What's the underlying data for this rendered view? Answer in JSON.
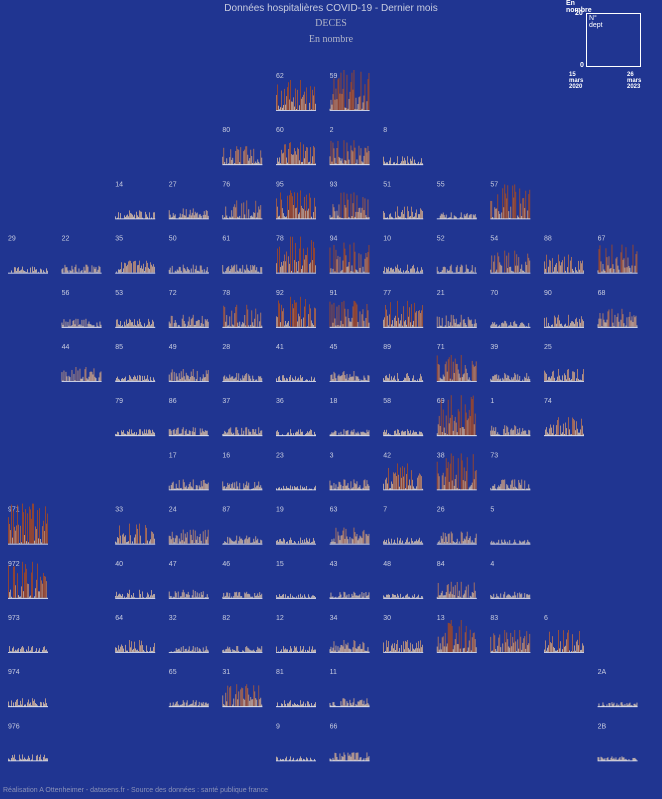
{
  "header": {
    "title": "Données hospitalières COVID-19 - Dernier mois",
    "subtitle": "DECES",
    "unit_note": "En nombre"
  },
  "legend": {
    "title": "En nombre",
    "y_max": "20",
    "y_min": "0",
    "dept_label": "N° dept",
    "date_start": "15 mars 2020",
    "date_end": "26 mars 2023"
  },
  "footer": {
    "credit": "Réalisation A Ottenheimer - datasens.fr - Source des données : santé publique france"
  },
  "chart_data": {
    "type": "bar",
    "layout": "small multiples, one daily bar series per French department arranged as a tile map",
    "y_range": [
      0,
      20
    ],
    "x_range": [
      "15 mars 2020",
      "26 mars 2023"
    ],
    "colors": {
      "background": "#203591",
      "low": "#f1e3c6",
      "high": "#b34a17",
      "axis": "#ffffff"
    },
    "departments": [
      {
        "code": "62",
        "row": 1,
        "col": 5,
        "peak": 15
      },
      {
        "code": "59",
        "row": 1,
        "col": 6,
        "peak": 20
      },
      {
        "code": "80",
        "row": 2,
        "col": 4,
        "peak": 9
      },
      {
        "code": "60",
        "row": 2,
        "col": 5,
        "peak": 11
      },
      {
        "code": "2",
        "row": 2,
        "col": 6,
        "peak": 12
      },
      {
        "code": "8",
        "row": 2,
        "col": 7,
        "peak": 4
      },
      {
        "code": "14",
        "row": 3,
        "col": 2,
        "peak": 4
      },
      {
        "code": "27",
        "row": 3,
        "col": 3,
        "peak": 5
      },
      {
        "code": "76",
        "row": 3,
        "col": 4,
        "peak": 9
      },
      {
        "code": "95",
        "row": 3,
        "col": 5,
        "peak": 14
      },
      {
        "code": "93",
        "row": 3,
        "col": 6,
        "peak": 13
      },
      {
        "code": "51",
        "row": 3,
        "col": 7,
        "peak": 6
      },
      {
        "code": "55",
        "row": 3,
        "col": 8,
        "peak": 3
      },
      {
        "code": "57",
        "row": 3,
        "col": 9,
        "peak": 17
      },
      {
        "code": "29",
        "row": 4,
        "col": 0,
        "peak": 3
      },
      {
        "code": "22",
        "row": 4,
        "col": 1,
        "peak": 4
      },
      {
        "code": "35",
        "row": 4,
        "col": 2,
        "peak": 6
      },
      {
        "code": "50",
        "row": 4,
        "col": 3,
        "peak": 4
      },
      {
        "code": "61",
        "row": 4,
        "col": 4,
        "peak": 4
      },
      {
        "code": "78",
        "row": 4,
        "col": 5,
        "peak": 18
      },
      {
        "code": "94",
        "row": 4,
        "col": 6,
        "peak": 15
      },
      {
        "code": "10",
        "row": 4,
        "col": 7,
        "peak": 4
      },
      {
        "code": "52",
        "row": 4,
        "col": 8,
        "peak": 4
      },
      {
        "code": "54",
        "row": 4,
        "col": 9,
        "peak": 11
      },
      {
        "code": "88",
        "row": 4,
        "col": 10,
        "peak": 9
      },
      {
        "code": "67",
        "row": 4,
        "col": 11,
        "peak": 14
      },
      {
        "code": "56",
        "row": 5,
        "col": 1,
        "peak": 4
      },
      {
        "code": "53",
        "row": 5,
        "col": 2,
        "peak": 4
      },
      {
        "code": "72",
        "row": 5,
        "col": 3,
        "peak": 6
      },
      {
        "code": "78",
        "row": 5,
        "col": 4,
        "peak": 11
      },
      {
        "code": "92",
        "row": 5,
        "col": 5,
        "peak": 15
      },
      {
        "code": "91",
        "row": 5,
        "col": 6,
        "peak": 13
      },
      {
        "code": "77",
        "row": 5,
        "col": 7,
        "peak": 13
      },
      {
        "code": "21",
        "row": 5,
        "col": 8,
        "peak": 6
      },
      {
        "code": "70",
        "row": 5,
        "col": 9,
        "peak": 3
      },
      {
        "code": "90",
        "row": 5,
        "col": 10,
        "peak": 6
      },
      {
        "code": "68",
        "row": 5,
        "col": 11,
        "peak": 9
      },
      {
        "code": "44",
        "row": 6,
        "col": 1,
        "peak": 7
      },
      {
        "code": "85",
        "row": 6,
        "col": 2,
        "peak": 3
      },
      {
        "code": "49",
        "row": 6,
        "col": 3,
        "peak": 6
      },
      {
        "code": "28",
        "row": 6,
        "col": 4,
        "peak": 4
      },
      {
        "code": "41",
        "row": 6,
        "col": 5,
        "peak": 3
      },
      {
        "code": "45",
        "row": 6,
        "col": 6,
        "peak": 5
      },
      {
        "code": "89",
        "row": 6,
        "col": 7,
        "peak": 4
      },
      {
        "code": "71",
        "row": 6,
        "col": 8,
        "peak": 13
      },
      {
        "code": "39",
        "row": 6,
        "col": 9,
        "peak": 4
      },
      {
        "code": "25",
        "row": 6,
        "col": 10,
        "peak": 6
      },
      {
        "code": "79",
        "row": 7,
        "col": 2,
        "peak": 3
      },
      {
        "code": "86",
        "row": 7,
        "col": 3,
        "peak": 4
      },
      {
        "code": "37",
        "row": 7,
        "col": 4,
        "peak": 4
      },
      {
        "code": "36",
        "row": 7,
        "col": 5,
        "peak": 3
      },
      {
        "code": "18",
        "row": 7,
        "col": 6,
        "peak": 3
      },
      {
        "code": "58",
        "row": 7,
        "col": 7,
        "peak": 3
      },
      {
        "code": "69",
        "row": 7,
        "col": 8,
        "peak": 20
      },
      {
        "code": "1",
        "row": 7,
        "col": 9,
        "peak": 5
      },
      {
        "code": "74",
        "row": 7,
        "col": 10,
        "peak": 9
      },
      {
        "code": "17",
        "row": 8,
        "col": 3,
        "peak": 5
      },
      {
        "code": "16",
        "row": 8,
        "col": 4,
        "peak": 4
      },
      {
        "code": "23",
        "row": 8,
        "col": 5,
        "peak": 2
      },
      {
        "code": "3",
        "row": 8,
        "col": 6,
        "peak": 5
      },
      {
        "code": "42",
        "row": 8,
        "col": 7,
        "peak": 13
      },
      {
        "code": "38",
        "row": 8,
        "col": 8,
        "peak": 18
      },
      {
        "code": "73",
        "row": 8,
        "col": 9,
        "peak": 5
      },
      {
        "code": "971",
        "row": 9,
        "col": 0,
        "peak": 20
      },
      {
        "code": "33",
        "row": 9,
        "col": 2,
        "peak": 10
      },
      {
        "code": "24",
        "row": 9,
        "col": 3,
        "peak": 7
      },
      {
        "code": "87",
        "row": 9,
        "col": 4,
        "peak": 4
      },
      {
        "code": "19",
        "row": 9,
        "col": 5,
        "peak": 3
      },
      {
        "code": "63",
        "row": 9,
        "col": 6,
        "peak": 8
      },
      {
        "code": "7",
        "row": 9,
        "col": 7,
        "peak": 3
      },
      {
        "code": "26",
        "row": 9,
        "col": 8,
        "peak": 6
      },
      {
        "code": "5",
        "row": 9,
        "col": 9,
        "peak": 2
      },
      {
        "code": "972",
        "row": 10,
        "col": 0,
        "peak": 18
      },
      {
        "code": "40",
        "row": 10,
        "col": 2,
        "peak": 4
      },
      {
        "code": "47",
        "row": 10,
        "col": 3,
        "peak": 4
      },
      {
        "code": "46",
        "row": 10,
        "col": 4,
        "peak": 3
      },
      {
        "code": "15",
        "row": 10,
        "col": 5,
        "peak": 2
      },
      {
        "code": "43",
        "row": 10,
        "col": 6,
        "peak": 3
      },
      {
        "code": "48",
        "row": 10,
        "col": 7,
        "peak": 2
      },
      {
        "code": "84",
        "row": 10,
        "col": 8,
        "peak": 8
      },
      {
        "code": "4",
        "row": 10,
        "col": 9,
        "peak": 3
      },
      {
        "code": "973",
        "row": 11,
        "col": 0,
        "peak": 3
      },
      {
        "code": "64",
        "row": 11,
        "col": 2,
        "peak": 6
      },
      {
        "code": "32",
        "row": 11,
        "col": 3,
        "peak": 3
      },
      {
        "code": "82",
        "row": 11,
        "col": 4,
        "peak": 3
      },
      {
        "code": "12",
        "row": 11,
        "col": 5,
        "peak": 3
      },
      {
        "code": "34",
        "row": 11,
        "col": 6,
        "peak": 6
      },
      {
        "code": "30",
        "row": 11,
        "col": 7,
        "peak": 6
      },
      {
        "code": "13",
        "row": 11,
        "col": 8,
        "peak": 16
      },
      {
        "code": "83",
        "row": 11,
        "col": 9,
        "peak": 11
      },
      {
        "code": "6",
        "row": 11,
        "col": 10,
        "peak": 11
      },
      {
        "code": "974",
        "row": 12,
        "col": 0,
        "peak": 4
      },
      {
        "code": "65",
        "row": 12,
        "col": 3,
        "peak": 3
      },
      {
        "code": "31",
        "row": 12,
        "col": 4,
        "peak": 11
      },
      {
        "code": "81",
        "row": 12,
        "col": 5,
        "peak": 3
      },
      {
        "code": "11",
        "row": 12,
        "col": 6,
        "peak": 4
      },
      {
        "code": "2A",
        "row": 12,
        "col": 11,
        "peak": 2
      },
      {
        "code": "976",
        "row": 13,
        "col": 0,
        "peak": 3
      },
      {
        "code": "9",
        "row": 13,
        "col": 5,
        "peak": 2
      },
      {
        "code": "66",
        "row": 13,
        "col": 6,
        "peak": 4
      },
      {
        "code": "2B",
        "row": 13,
        "col": 11,
        "peak": 2
      }
    ]
  }
}
